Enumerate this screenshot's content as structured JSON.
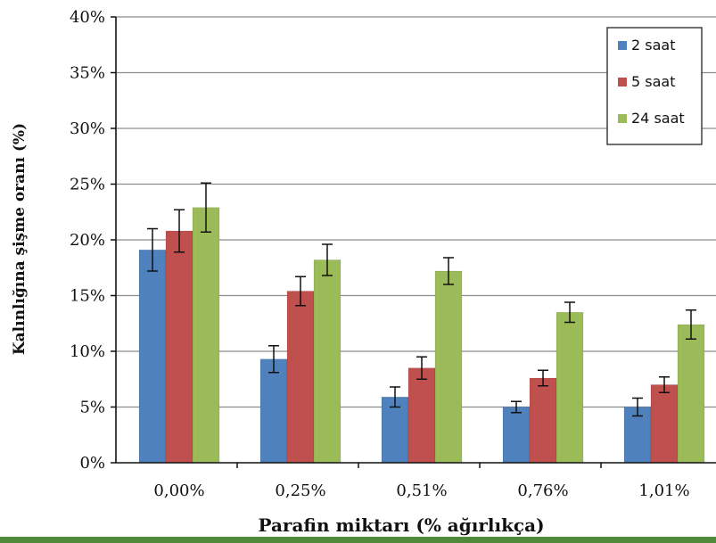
{
  "chart_data": {
    "type": "bar",
    "categories": [
      "0,00%",
      "0,25%",
      "0,51%",
      "0,76%",
      "1,01%"
    ],
    "series": [
      {
        "name": "2 saat",
        "color": "#4f81bd",
        "values": [
          19.1,
          9.3,
          5.9,
          5.0,
          5.0
        ],
        "errors": [
          1.9,
          1.2,
          0.9,
          0.5,
          0.8
        ]
      },
      {
        "name": "5 saat",
        "color": "#c0504d",
        "values": [
          20.8,
          15.4,
          8.5,
          7.6,
          7.0
        ],
        "errors": [
          1.9,
          1.3,
          1.0,
          0.7,
          0.7
        ]
      },
      {
        "name": "24 saat",
        "color": "#9bbb59",
        "values": [
          22.9,
          18.2,
          17.2,
          13.5,
          12.4
        ],
        "errors": [
          2.2,
          1.4,
          1.2,
          0.9,
          1.3
        ]
      }
    ],
    "ylim": [
      0,
      40
    ],
    "yticks": [
      "0%",
      "5%",
      "10%",
      "15%",
      "20%",
      "25%",
      "30%",
      "35%",
      "40%"
    ],
    "ytick_values": [
      0,
      5,
      10,
      15,
      20,
      25,
      30,
      35,
      40
    ],
    "xlabel": "Parafin miktarı (% ağırlıkça)",
    "ylabel": "Kalınlığına şişme oranı (%)",
    "grid": true,
    "legend_position": "top-right"
  }
}
